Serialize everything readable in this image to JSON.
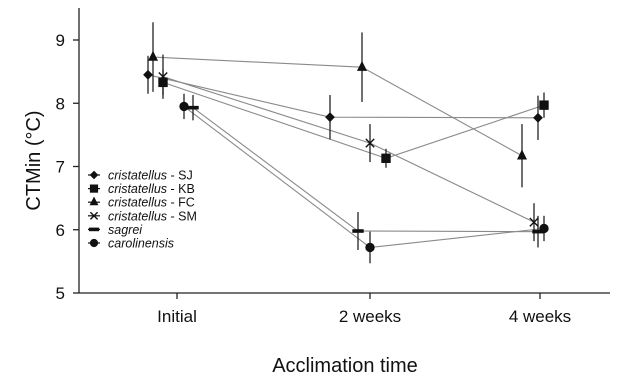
{
  "chart_data": {
    "type": "line",
    "xlabel": "Acclimation time",
    "ylabel": "CTMin (°C)",
    "categories": [
      "Initial",
      "2 weeks",
      "4 weeks"
    ],
    "ylim": [
      5,
      9.5
    ],
    "yticks": [
      5,
      6,
      7,
      8,
      9
    ],
    "grid": false,
    "legend_position": "bottom-left",
    "series": [
      {
        "name": "cristatellus - SJ",
        "italic": "cristatellus",
        "suffix": " - SJ",
        "marker": "diamond",
        "values": [
          8.45,
          7.78,
          7.77
        ],
        "err": [
          0.3,
          0.35,
          0.35
        ]
      },
      {
        "name": "cristatellus - KB",
        "italic": "cristatellus",
        "suffix": " - KB",
        "marker": "square",
        "values": [
          8.33,
          7.13,
          7.97
        ],
        "err": [
          0.2,
          0.15,
          0.2
        ]
      },
      {
        "name": "cristatellus - FC",
        "italic": "cristatellus",
        "suffix": " - FC",
        "marker": "triangle",
        "values": [
          8.73,
          8.57,
          7.17
        ],
        "err": [
          0.55,
          0.55,
          0.5
        ]
      },
      {
        "name": "cristatellus - SM",
        "italic": "cristatellus",
        "suffix": " - SM",
        "marker": "x",
        "values": [
          8.42,
          7.37,
          6.12
        ],
        "err": [
          0.35,
          0.3,
          0.3
        ]
      },
      {
        "name": "sagrei",
        "italic": "sagrei",
        "suffix": "",
        "marker": "dash",
        "values": [
          7.93,
          5.98,
          5.97
        ],
        "err": [
          0.2,
          0.3,
          0.25
        ]
      },
      {
        "name": "carolinensis",
        "italic": "carolinensis",
        "suffix": "",
        "marker": "circle",
        "values": [
          7.95,
          5.72,
          6.02
        ],
        "err": [
          0.2,
          0.25,
          0.2
        ]
      }
    ]
  }
}
